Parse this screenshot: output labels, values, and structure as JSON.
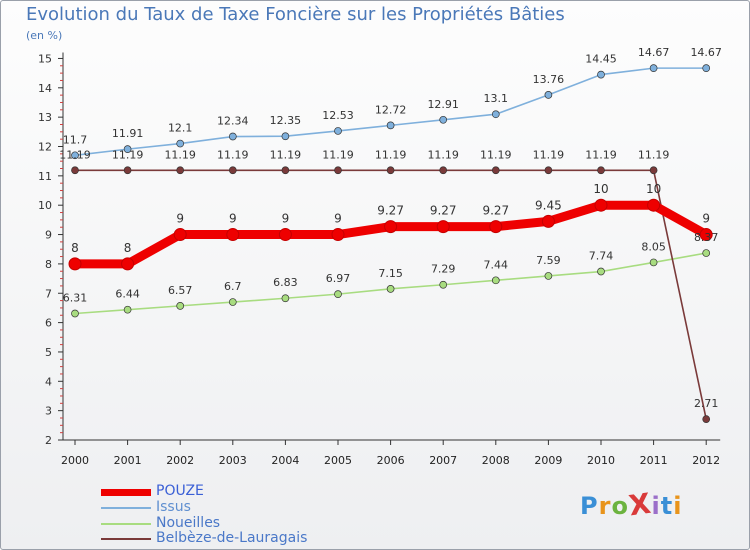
{
  "title": "Evolution du Taux de Taxe Foncière sur les Propriétés Bâties",
  "unit_label": "(en %)",
  "logo": {
    "text": "ProXiti",
    "colors": [
      "#3a8fd6",
      "#e8941c",
      "#6cb33f",
      "#d93a3a",
      "#9b6fc9",
      "#3a8fd6",
      "#e8941c"
    ]
  },
  "chart_data": {
    "type": "line",
    "title": "Evolution du Taux de Taxe Foncière sur les Propriétés Bâties",
    "ylabel": "(en %)",
    "xlabel": "",
    "ylim": [
      2,
      15
    ],
    "yticks": [
      2,
      3,
      4,
      5,
      6,
      7,
      8,
      9,
      10,
      11,
      12,
      13,
      14,
      15
    ],
    "grid": false,
    "legend_position": "bottom-left",
    "x": [
      "2000",
      "2001",
      "2002",
      "2003",
      "2004",
      "2005",
      "2006",
      "2007",
      "2008",
      "2009",
      "2010",
      "2011",
      "2012"
    ],
    "series": [
      {
        "name": "POUZE",
        "color": "#ee0000",
        "labels": [
          "8",
          "8",
          "9",
          "9",
          "9",
          "9",
          "9.27",
          "9.27",
          "9.27",
          "9.45",
          "10",
          "10",
          "9"
        ],
        "values": [
          8,
          8,
          9,
          9,
          9,
          9,
          9.27,
          9.27,
          9.27,
          9.45,
          10,
          10,
          9
        ]
      },
      {
        "name": "Issus",
        "color": "#7fb0dc",
        "labels": [
          "11.7",
          "11.91",
          "12.1",
          "12.34",
          "12.35",
          "12.53",
          "12.72",
          "12.91",
          "13.1",
          "13.76",
          "14.45",
          "14.67",
          "14.67"
        ],
        "values": [
          11.7,
          11.91,
          12.1,
          12.34,
          12.35,
          12.53,
          12.72,
          12.91,
          13.1,
          13.76,
          14.45,
          14.67,
          14.67
        ]
      },
      {
        "name": "Noueilles",
        "color": "#a8dc80",
        "labels": [
          "6.31",
          "6.44",
          "6.57",
          "6.7",
          "6.83",
          "6.97",
          "7.15",
          "7.29",
          "7.44",
          "7.59",
          "7.74",
          "8.05",
          "8.37"
        ],
        "values": [
          6.31,
          6.44,
          6.57,
          6.7,
          6.83,
          6.97,
          7.15,
          7.29,
          7.44,
          7.59,
          7.74,
          8.05,
          8.37
        ]
      },
      {
        "name": "Belbèze-de-Lauragais",
        "color": "#7a3a3a",
        "labels": [
          "11.19",
          "11.19",
          "11.19",
          "11.19",
          "11.19",
          "11.19",
          "11.19",
          "11.19",
          "11.19",
          "11.19",
          "11.19",
          "11.19",
          "2.71"
        ],
        "values": [
          11.19,
          11.19,
          11.19,
          11.19,
          11.19,
          11.19,
          11.19,
          11.19,
          11.19,
          11.19,
          11.19,
          11.19,
          2.71
        ]
      }
    ]
  }
}
